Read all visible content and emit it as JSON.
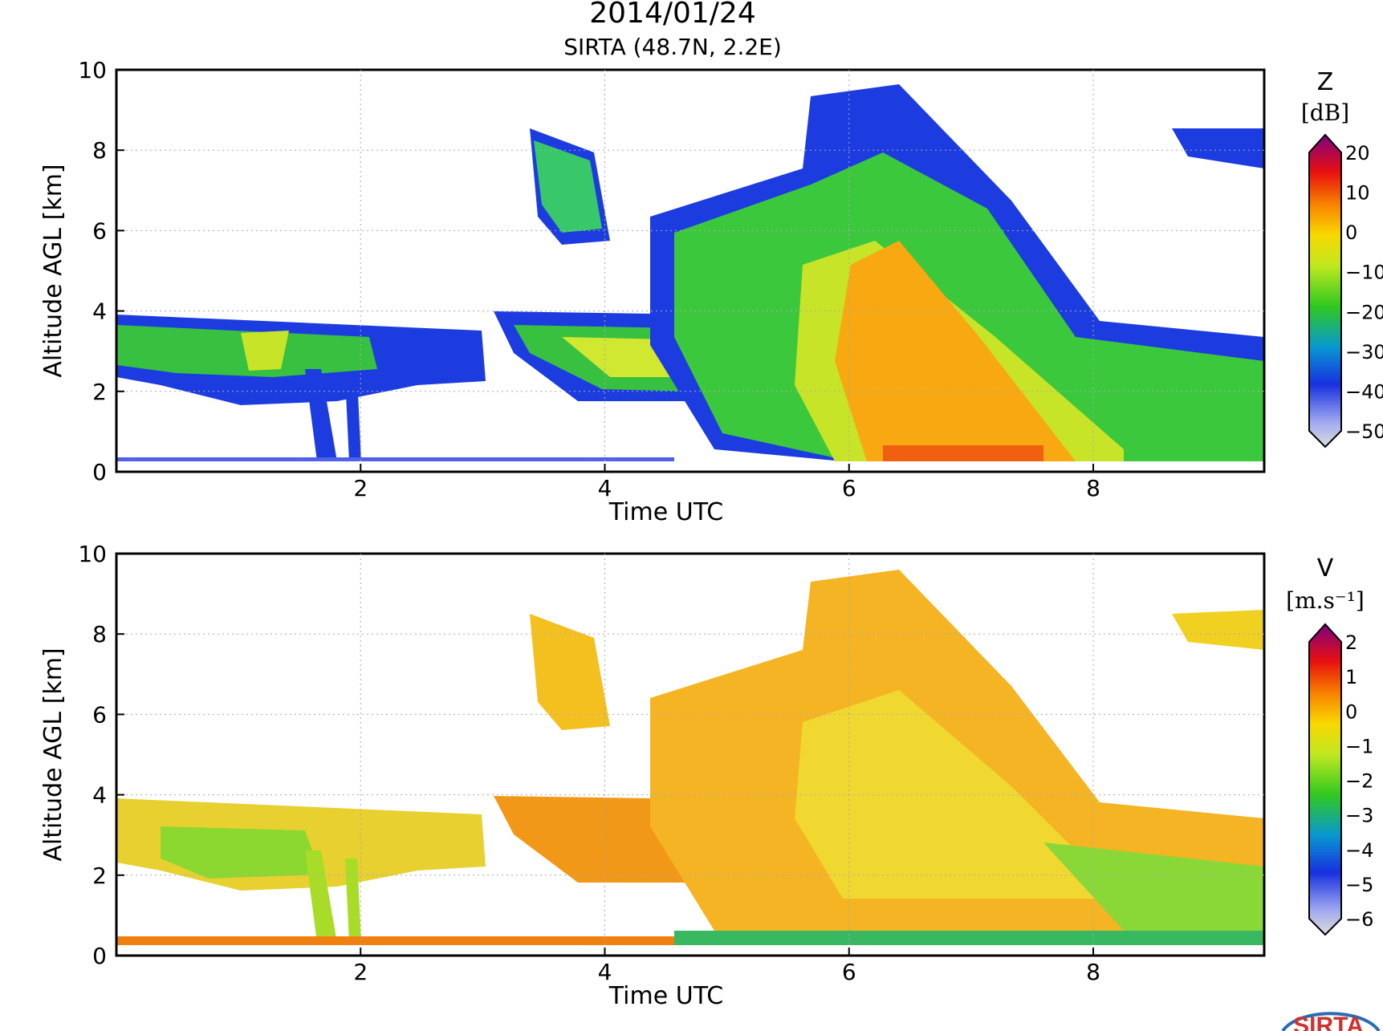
{
  "figure": {
    "title": "2014/01/24",
    "subtitle": "SIRTA (48.7N, 2.2E)"
  },
  "chart_data": [
    {
      "type": "heatmap",
      "variable": "Z",
      "colorbar_label": "Z",
      "colorbar_unit": "[dB]",
      "colorbar_ticks": [
        "20",
        "10",
        "0",
        "−10",
        "−20",
        "−30",
        "−40",
        "−50"
      ],
      "colorbar_range": [
        -50,
        20
      ],
      "xlabel": "Time UTC",
      "ylabel": "Altitude AGL [km]",
      "xlim": [
        0,
        9.4
      ],
      "ylim": [
        0,
        10
      ],
      "xticks": [
        2,
        4,
        6,
        8
      ],
      "yticks": [
        0,
        2,
        4,
        6,
        8,
        10
      ],
      "grid": true,
      "features": [
        {
          "name": "low layer",
          "t": [
            0.0,
            3.0
          ],
          "alt": [
            2.0,
            4.0
          ],
          "value": -28
        },
        {
          "name": "mid cloud",
          "t": [
            3.3,
            4.1
          ],
          "alt": [
            6.0,
            8.5
          ],
          "value": -25
        },
        {
          "name": "layer ~3 km",
          "t": [
            3.2,
            6.0
          ],
          "alt": [
            2.0,
            4.0
          ],
          "value": -15
        },
        {
          "name": "deep system",
          "t": [
            4.4,
            9.4
          ],
          "alt": [
            0.2,
            9.7
          ],
          "value": -20
        },
        {
          "name": "precipitation core",
          "t": [
            6.0,
            8.0
          ],
          "alt": [
            0.2,
            5.5
          ],
          "value": -5
        },
        {
          "name": "high cloud",
          "t": [
            8.5,
            9.4
          ],
          "alt": [
            7.5,
            8.7
          ],
          "value": -35
        }
      ]
    },
    {
      "type": "heatmap",
      "variable": "V",
      "colorbar_label": "V",
      "colorbar_unit": "[m.s⁻¹]",
      "colorbar_ticks": [
        "2",
        "1",
        "0",
        "−1",
        "−2",
        "−3",
        "−4",
        "−5",
        "−6"
      ],
      "colorbar_range": [
        -6,
        2
      ],
      "xlabel": "Time UTC",
      "ylabel": "Altitude AGL [km]",
      "xlim": [
        0,
        9.4
      ],
      "ylim": [
        0,
        10
      ],
      "xticks": [
        2,
        4,
        6,
        8
      ],
      "yticks": [
        0,
        2,
        4,
        6,
        8,
        10
      ],
      "grid": true,
      "features": [
        {
          "name": "low layer",
          "t": [
            0.0,
            3.0
          ],
          "alt": [
            2.0,
            4.0
          ],
          "value": -1.5
        },
        {
          "name": "mid cloud",
          "t": [
            3.3,
            4.1
          ],
          "alt": [
            6.0,
            8.5
          ],
          "value": -0.8
        },
        {
          "name": "deep system",
          "t": [
            4.4,
            9.4
          ],
          "alt": [
            0.2,
            9.7
          ],
          "value": -0.9
        },
        {
          "name": "near-surface",
          "t": [
            0.0,
            9.4
          ],
          "alt": [
            0.2,
            0.5
          ],
          "value": -0.5
        },
        {
          "name": "fall streaks",
          "t": [
            7.5,
            9.4
          ],
          "alt": [
            0.5,
            2.5
          ],
          "value": -2.2
        }
      ]
    }
  ],
  "logo": {
    "text": "SIRTA"
  }
}
